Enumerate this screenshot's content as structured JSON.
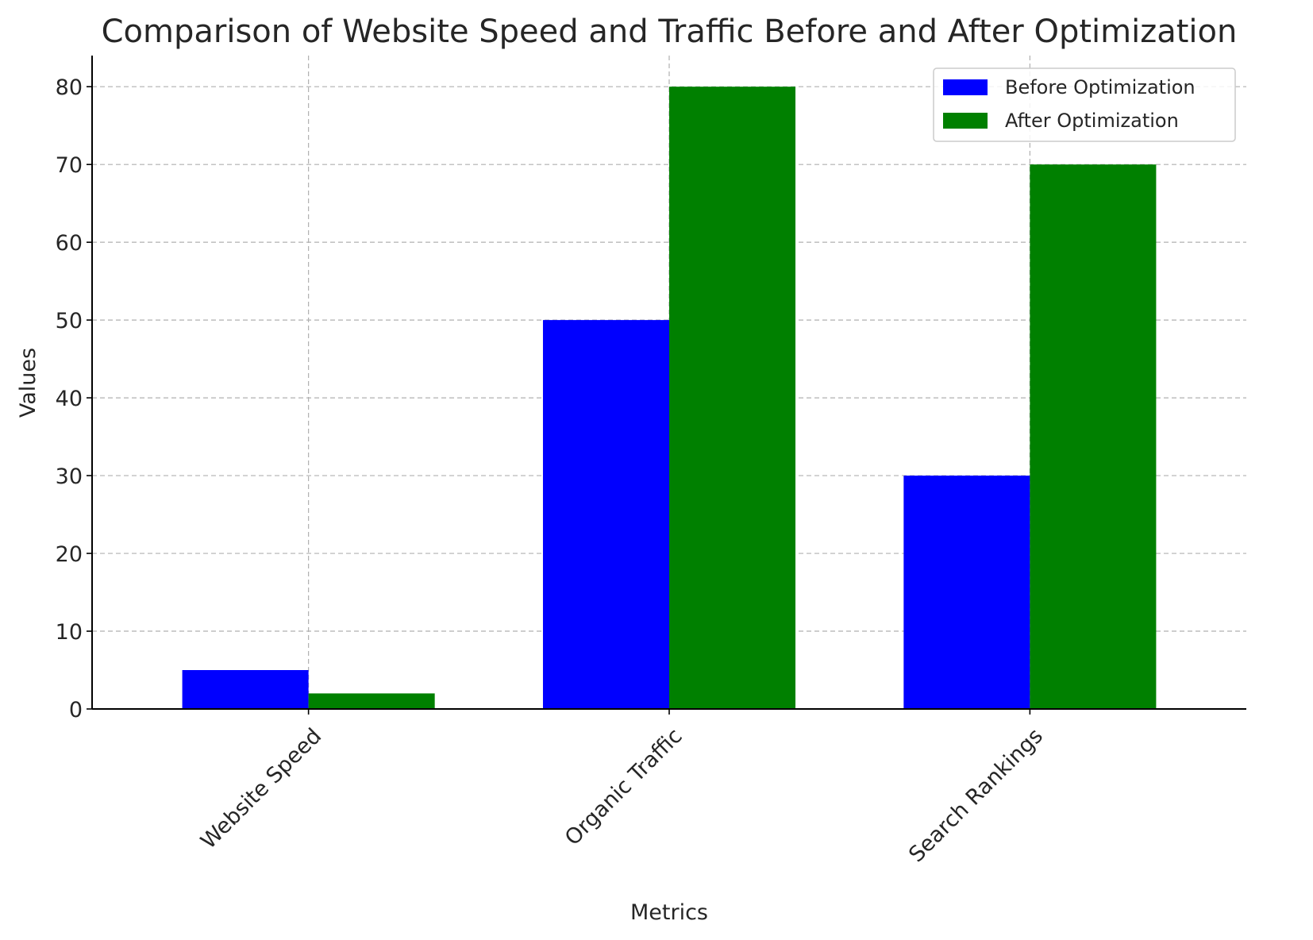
{
  "chart_data": {
    "type": "bar",
    "title": "Comparison of Website Speed and Traffic Before and After Optimization",
    "xlabel": "Metrics",
    "ylabel": "Values",
    "categories": [
      "Website Speed",
      "Organic Traffic",
      "Search Rankings"
    ],
    "series": [
      {
        "name": "Before Optimization",
        "values": [
          5,
          50,
          30
        ],
        "color": "#0000ff"
      },
      {
        "name": "After Optimization",
        "values": [
          2,
          80,
          70
        ],
        "color": "#008000"
      }
    ],
    "ylim": [
      0,
      84
    ],
    "yticks": [
      0,
      10,
      20,
      30,
      40,
      50,
      60,
      70,
      80
    ],
    "grid": true,
    "legend_position": "top-right",
    "x_tick_rotation": "45"
  }
}
